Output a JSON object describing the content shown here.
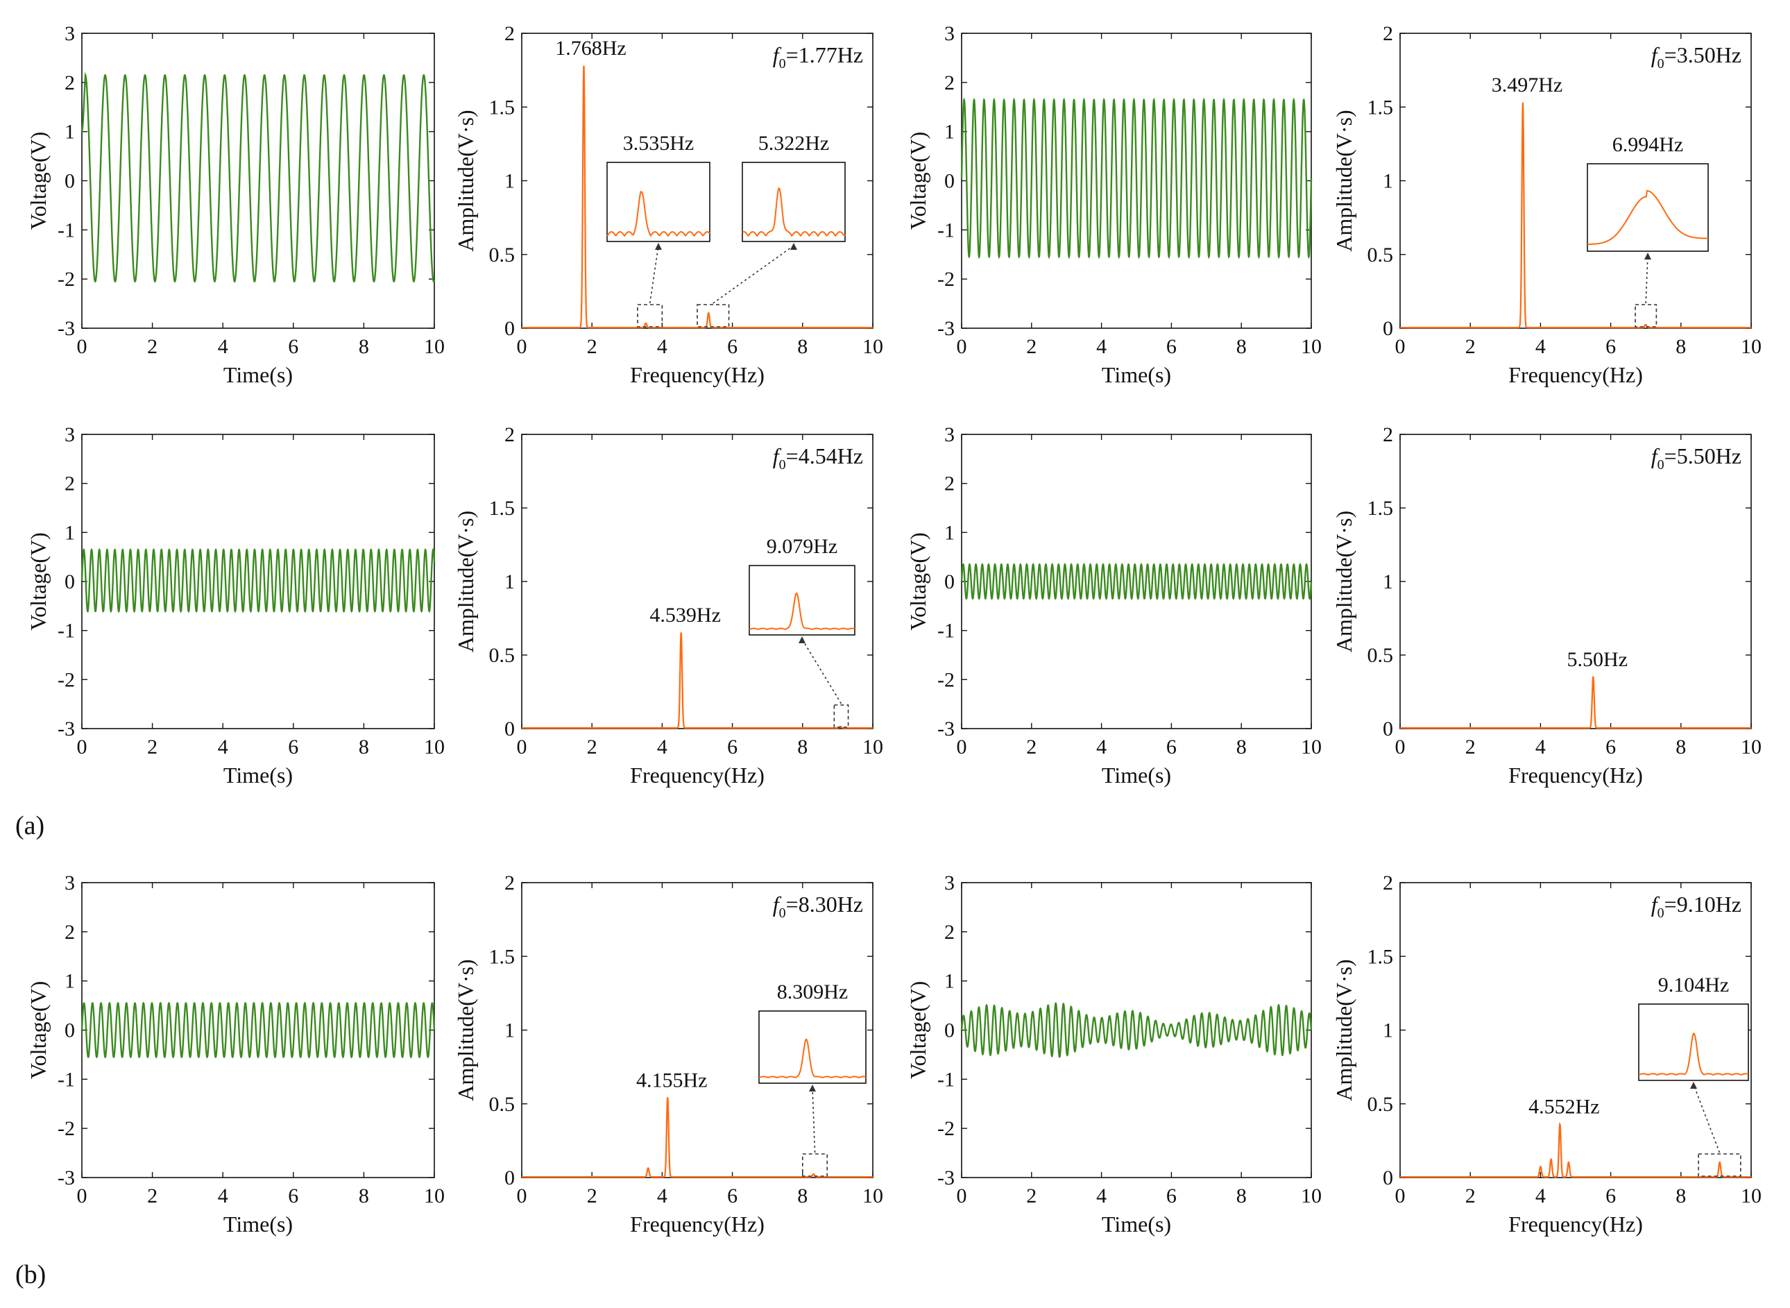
{
  "figure": {
    "panel_labels": [
      "(a)",
      "(b)"
    ]
  },
  "colors": {
    "time_trace": "#3a8a1e",
    "spectrum": "#ff6a10",
    "axis": "#111111",
    "inset_marker": "#333333"
  },
  "chart_data": [
    {
      "id": "t1",
      "type": "line",
      "kind": "time",
      "xlabel": "Time(s)",
      "ylabel": "Voltage(V)",
      "xlim": [
        0,
        10
      ],
      "ylim": [
        -3,
        3
      ],
      "xticks": [
        "0",
        "2",
        "4",
        "6",
        "8",
        "10"
      ],
      "yticks": [
        "-3",
        "-2",
        "-1",
        "0",
        "1",
        "2",
        "3"
      ],
      "series": [
        {
          "name": "voltage",
          "frequency_hz": 1.77,
          "amplitude_v": 2.1,
          "offset_v": 0.05,
          "initial_v": 1.0
        }
      ]
    },
    {
      "id": "s1",
      "type": "line",
      "kind": "spectrum",
      "xlabel": "Frequency(Hz)",
      "ylabel": "Amplitude(V·s)",
      "xlim": [
        0,
        10
      ],
      "ylim": [
        0,
        2
      ],
      "xticks": [
        "0",
        "2",
        "4",
        "6",
        "8",
        "10"
      ],
      "yticks": [
        "0",
        "0.5",
        "1",
        "1.5",
        "2"
      ],
      "f0_prefix": "f",
      "f0_sub": "0",
      "f0_value": "=1.77Hz",
      "peaks": [
        {
          "f": 1.768,
          "a": 1.78,
          "label": "1.768Hz"
        },
        {
          "f": 3.535,
          "a": 0.03
        },
        {
          "f": 5.322,
          "a": 0.1
        }
      ],
      "insets": [
        {
          "label": "3.535Hz",
          "range": [
            3.3,
            4.0
          ]
        },
        {
          "label": "5.322Hz",
          "range": [
            5.0,
            5.9
          ]
        }
      ]
    },
    {
      "id": "t2",
      "type": "line",
      "kind": "time",
      "xlabel": "Time(s)",
      "ylabel": "Voltage(V)",
      "xlim": [
        0,
        10
      ],
      "ylim": [
        -3,
        3
      ],
      "xticks": [
        "0",
        "2",
        "4",
        "6",
        "8",
        "10"
      ],
      "yticks": [
        "-3",
        "-2",
        "-1",
        "0",
        "1",
        "2",
        "3"
      ],
      "series": [
        {
          "name": "voltage",
          "frequency_hz": 3.5,
          "amplitude_v": 1.6,
          "offset_v": 0.05
        }
      ]
    },
    {
      "id": "s2",
      "type": "line",
      "kind": "spectrum",
      "xlabel": "Frequency(Hz)",
      "ylabel": "Amplitude(V·s)",
      "xlim": [
        0,
        10
      ],
      "ylim": [
        0,
        2
      ],
      "xticks": [
        "0",
        "2",
        "4",
        "6",
        "8",
        "10"
      ],
      "yticks": [
        "0",
        "0.5",
        "1",
        "1.5",
        "2"
      ],
      "f0_prefix": "f",
      "f0_sub": "0",
      "f0_value": "=3.50Hz",
      "peaks": [
        {
          "f": 3.497,
          "a": 1.53,
          "label": "3.497Hz"
        },
        {
          "f": 6.994,
          "a": 0.02
        }
      ],
      "insets": [
        {
          "label": "6.994Hz",
          "range": [
            6.7,
            7.3
          ]
        }
      ]
    },
    {
      "id": "t3",
      "type": "line",
      "kind": "time",
      "xlabel": "Time(s)",
      "ylabel": "Voltage(V)",
      "xlim": [
        0,
        10
      ],
      "ylim": [
        -3,
        3
      ],
      "xticks": [
        "0",
        "2",
        "4",
        "6",
        "8",
        "10"
      ],
      "yticks": [
        "-3",
        "-2",
        "-1",
        "0",
        "1",
        "2",
        "3"
      ],
      "series": [
        {
          "name": "voltage",
          "frequency_hz": 4.54,
          "amplitude_v": 0.63,
          "offset_v": 0.02
        }
      ]
    },
    {
      "id": "s3",
      "type": "line",
      "kind": "spectrum",
      "xlabel": "Frequency(Hz)",
      "ylabel": "Amplitude(V·s)",
      "xlim": [
        0,
        10
      ],
      "ylim": [
        0,
        2
      ],
      "xticks": [
        "0",
        "2",
        "4",
        "6",
        "8",
        "10"
      ],
      "yticks": [
        "0",
        "0.5",
        "1",
        "1.5",
        "2"
      ],
      "f0_prefix": "f",
      "f0_sub": "0",
      "f0_value": "=4.54Hz",
      "peaks": [
        {
          "f": 4.539,
          "a": 0.65,
          "label": "4.539Hz"
        },
        {
          "f": 9.079,
          "a": 0.01
        }
      ],
      "insets": [
        {
          "label": "9.079Hz",
          "range": [
            8.9,
            9.3
          ]
        }
      ]
    },
    {
      "id": "t4",
      "type": "line",
      "kind": "time",
      "xlabel": "Time(s)",
      "ylabel": "Voltage(V)",
      "xlim": [
        0,
        10
      ],
      "ylim": [
        -3,
        3
      ],
      "xticks": [
        "0",
        "2",
        "4",
        "6",
        "8",
        "10"
      ],
      "yticks": [
        "-3",
        "-2",
        "-1",
        "0",
        "1",
        "2",
        "3"
      ],
      "series": [
        {
          "name": "voltage",
          "frequency_hz": 5.5,
          "amplitude_v": 0.35,
          "offset_v": 0.0
        }
      ]
    },
    {
      "id": "s4",
      "type": "line",
      "kind": "spectrum",
      "xlabel": "Frequency(Hz)",
      "ylabel": "Amplitude(V·s)",
      "xlim": [
        0,
        10
      ],
      "ylim": [
        0,
        2
      ],
      "xticks": [
        "0",
        "2",
        "4",
        "6",
        "8",
        "10"
      ],
      "yticks": [
        "0",
        "0.5",
        "1",
        "1.5",
        "2"
      ],
      "f0_prefix": "f",
      "f0_sub": "0",
      "f0_value": "=5.50Hz",
      "peaks": [
        {
          "f": 5.5,
          "a": 0.35,
          "label": "5.50Hz"
        }
      ],
      "insets": []
    },
    {
      "id": "t5",
      "type": "line",
      "kind": "time",
      "xlabel": "Time(s)",
      "ylabel": "Voltage(V)",
      "xlim": [
        0,
        10
      ],
      "ylim": [
        -3,
        3
      ],
      "xticks": [
        "0",
        "2",
        "4",
        "6",
        "8",
        "10"
      ],
      "yticks": [
        "-3",
        "-2",
        "-1",
        "0",
        "1",
        "2",
        "3"
      ],
      "series": [
        {
          "name": "voltage",
          "frequency_hz": 4.15,
          "amplitude_v": 0.55,
          "offset_v": 0.0
        }
      ]
    },
    {
      "id": "s5",
      "type": "line",
      "kind": "spectrum",
      "xlabel": "Frequency(Hz)",
      "ylabel": "Amplitude(V·s)",
      "xlim": [
        0,
        10
      ],
      "ylim": [
        0,
        2
      ],
      "xticks": [
        "0",
        "2",
        "4",
        "6",
        "8",
        "10"
      ],
      "yticks": [
        "0",
        "0.5",
        "1",
        "1.5",
        "2"
      ],
      "f0_prefix": "f",
      "f0_sub": "0",
      "f0_value": "=8.30Hz",
      "peaks": [
        {
          "f": 4.155,
          "a": 0.54,
          "label": "4.155Hz"
        },
        {
          "f": 3.6,
          "a": 0.06
        },
        {
          "f": 8.309,
          "a": 0.02
        }
      ],
      "insets": [
        {
          "label": "8.309Hz",
          "range": [
            8.0,
            8.7
          ]
        }
      ]
    },
    {
      "id": "t6",
      "type": "line",
      "kind": "time",
      "xlabel": "Time(s)",
      "ylabel": "Voltage(V)",
      "xlim": [
        0,
        10
      ],
      "ylim": [
        -3,
        3
      ],
      "xticks": [
        "0",
        "2",
        "4",
        "6",
        "8",
        "10"
      ],
      "yticks": [
        "-3",
        "-2",
        "-1",
        "0",
        "1",
        "2",
        "3"
      ],
      "series": [
        {
          "name": "voltage",
          "frequency_hz": 4.55,
          "amplitude_v": 0.45,
          "offset_v": 0.0,
          "beat_hz": 0.24,
          "beat_depth": 0.5
        }
      ]
    },
    {
      "id": "s6",
      "type": "line",
      "kind": "spectrum",
      "xlabel": "Frequency(Hz)",
      "ylabel": "Amplitude(V·s)",
      "xlim": [
        0,
        10
      ],
      "ylim": [
        0,
        2
      ],
      "xticks": [
        "0",
        "2",
        "4",
        "6",
        "8",
        "10"
      ],
      "yticks": [
        "0",
        "0.5",
        "1",
        "1.5",
        "2"
      ],
      "f0_prefix": "f",
      "f0_sub": "0",
      "f0_value": "=9.10Hz",
      "peaks": [
        {
          "f": 4.552,
          "a": 0.36,
          "label": "4.552Hz"
        },
        {
          "f": 4.3,
          "a": 0.12
        },
        {
          "f": 4.8,
          "a": 0.1
        },
        {
          "f": 4.0,
          "a": 0.07
        },
        {
          "f": 9.104,
          "a": 0.1
        }
      ],
      "insets": [
        {
          "label": "9.104Hz",
          "range": [
            8.5,
            9.7
          ]
        }
      ]
    }
  ]
}
